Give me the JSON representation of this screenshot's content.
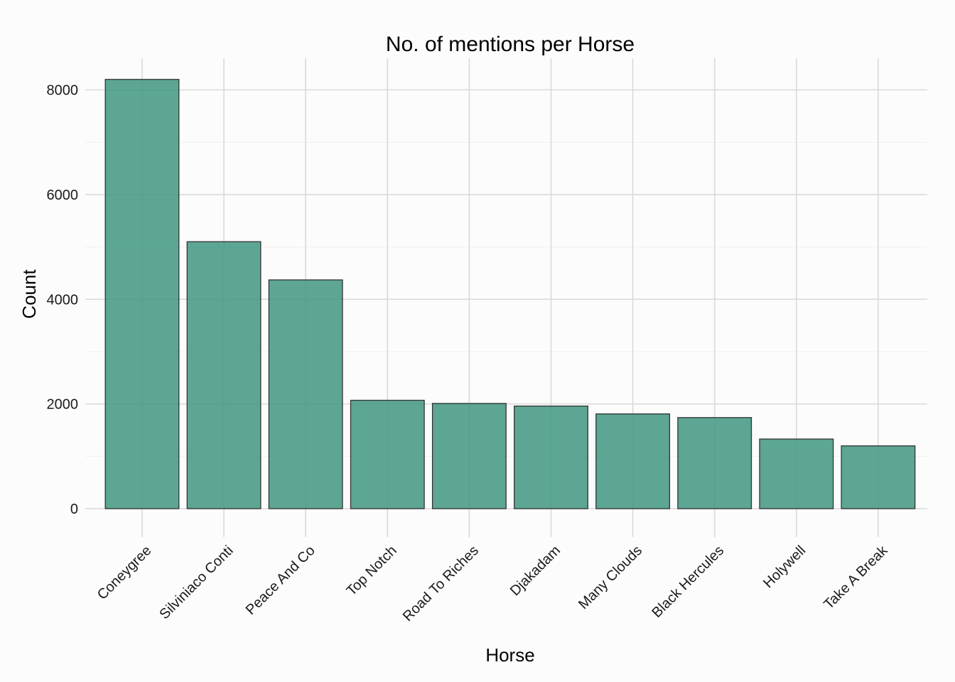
{
  "chart_data": {
    "type": "bar",
    "title": "No. of mentions per Horse",
    "xlabel": "Horse",
    "ylabel": "Count",
    "categories": [
      "Coneygree",
      "Silviniaco Conti",
      "Peace And Co",
      "Top Notch",
      "Road To Riches",
      "Djakadam",
      "Many Clouds",
      "Black Hercules",
      "Holywell",
      "Take A Break"
    ],
    "values": [
      8200,
      5100,
      4370,
      2070,
      2010,
      1960,
      1810,
      1740,
      1330,
      1200
    ],
    "yticks": [
      0,
      2000,
      4000,
      6000,
      8000
    ],
    "ylim": [
      0,
      8200
    ],
    "grid": true,
    "colors": {
      "bar_fill": "#3f9680",
      "bar_outline": "#333333"
    }
  }
}
